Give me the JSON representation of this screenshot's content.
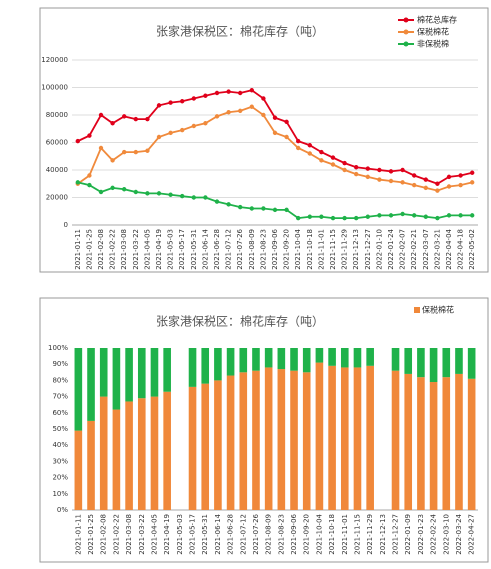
{
  "chart_data": [
    {
      "type": "line",
      "title": "张家港保税区：棉花库存（吨）",
      "categories": [
        "2021-01-11",
        "2021-01-25",
        "2021-02-08",
        "2021-02-22",
        "2021-03-08",
        "2021-03-22",
        "2021-04-05",
        "2021-04-19",
        "2021-05-03",
        "2021-05-17",
        "2021-05-31",
        "2021-06-14",
        "2021-06-28",
        "2021-07-12",
        "2021-07-26",
        "2021-08-09",
        "2021-08-23",
        "2021-09-06",
        "2021-09-20",
        "2021-10-04",
        "2021-10-18",
        "2021-11-01",
        "2021-11-15",
        "2021-11-29",
        "2021-12-13",
        "2021-12-27",
        "2022-01-10",
        "2022-01-24",
        "2022-02-07",
        "2022-02-21",
        "2022-03-07",
        "2022-03-21",
        "2022-04-04",
        "2022-04-18",
        "2022-05-02"
      ],
      "series": [
        {
          "name": "棉花总库存",
          "color": "#e0001b",
          "values": [
            61000,
            65000,
            80000,
            74000,
            79000,
            77000,
            77000,
            87000,
            89000,
            90000,
            92000,
            94000,
            96000,
            97000,
            96000,
            98000,
            92000,
            78000,
            75000,
            61000,
            58000,
            53000,
            49000,
            45000,
            42000,
            41000,
            40000,
            39000,
            40000,
            36000,
            33000,
            30000,
            35000,
            36000,
            38000
          ]
        },
        {
          "name": "保税棉花",
          "color": "#f08a3c",
          "values": [
            30000,
            36000,
            56000,
            47000,
            53000,
            53000,
            54000,
            64000,
            67000,
            69000,
            72000,
            74000,
            79000,
            82000,
            83000,
            86000,
            80000,
            67000,
            64000,
            56000,
            52000,
            47000,
            44000,
            40000,
            37000,
            35000,
            33000,
            32000,
            31000,
            29000,
            27000,
            25000,
            28000,
            29000,
            31000
          ]
        },
        {
          "name": "非保税棉",
          "color": "#1fb24a",
          "values": [
            31000,
            29000,
            24000,
            27000,
            26000,
            24000,
            23000,
            23000,
            22000,
            21000,
            20000,
            20000,
            17000,
            15000,
            13000,
            12000,
            12000,
            11000,
            11000,
            5000,
            6000,
            6000,
            5000,
            5000,
            5000,
            6000,
            7000,
            7000,
            8000,
            7000,
            6000,
            5000,
            7000,
            7000,
            7000
          ]
        }
      ],
      "ylim": [
        0,
        120000
      ],
      "yticks": [
        0,
        20000,
        40000,
        60000,
        80000,
        100000,
        120000
      ],
      "grid": true,
      "legend": "top-right"
    },
    {
      "type": "bar",
      "title": "张家港保税区：棉花库存（吨）",
      "categories": [
        "2021-01-11",
        "2021-01-25",
        "2021-02-08",
        "2021-02-22",
        "2021-03-08",
        "2021-03-22",
        "2021-04-05",
        "2021-04-19",
        "2021-05-03",
        "2021-05-17",
        "2021-05-31",
        "2021-06-14",
        "2021-06-28",
        "2021-07-12",
        "2021-07-26",
        "2021-08-09",
        "2021-08-23",
        "2021-09-06",
        "2021-09-20",
        "2021-10-04",
        "2021-10-18",
        "2021-11-01",
        "2021-11-15",
        "2021-11-29",
        "2021-12-13",
        "2021-12-27",
        "2022-01-09",
        "2022-01-23",
        "2022-02-24",
        "2022-03-10",
        "2022-03-24",
        "2022-04-27"
      ],
      "series": [
        {
          "name": "保税棉花",
          "color": "#f0883a",
          "values": [
            49,
            55,
            70,
            62,
            67,
            69,
            70,
            73,
            null,
            76,
            78,
            80,
            83,
            85,
            86,
            88,
            87,
            86,
            85,
            91,
            89,
            88,
            88,
            89,
            null,
            86,
            84,
            82,
            79,
            82,
            84,
            81
          ]
        },
        {
          "color": "#1fb24a",
          "values": [
            51,
            45,
            30,
            38,
            33,
            31,
            30,
            27,
            null,
            24,
            22,
            20,
            17,
            15,
            14,
            12,
            13,
            14,
            15,
            9,
            11,
            12,
            12,
            11,
            null,
            14,
            16,
            18,
            21,
            18,
            16,
            19
          ]
        }
      ],
      "ylim": [
        0,
        100
      ],
      "yticks": [
        {
          "value": 0,
          "label": "0%"
        },
        {
          "value": 10,
          "label": "10%"
        },
        {
          "value": 20,
          "label": "20%"
        },
        {
          "value": 30,
          "label": "30%"
        },
        {
          "value": 40,
          "label": "40%"
        },
        {
          "value": 50,
          "label": "50%"
        },
        {
          "value": 60,
          "label": "60%"
        },
        {
          "value": 70,
          "label": "70%"
        },
        {
          "value": 80,
          "label": "80%"
        },
        {
          "value": 90,
          "label": "90%"
        },
        {
          "value": 100,
          "label": "100%"
        }
      ],
      "stacked": true,
      "legend": "top-right"
    }
  ]
}
